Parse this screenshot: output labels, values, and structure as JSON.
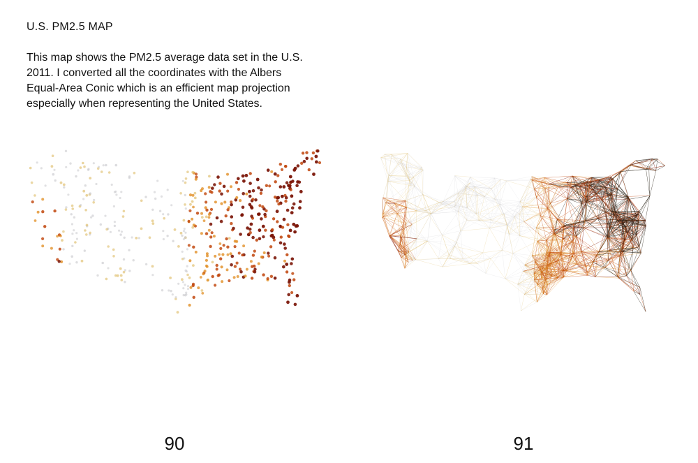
{
  "left_page": {
    "title": "U.S. PM2.5 MAP",
    "body_lines": [
      "This map shows the PM2.5 average data set in the U.S.",
      "2011. I converted all the coordinates with the Albers",
      "Equal-Area Conic which is an efficient map projection",
      "especially when representing the United States."
    ],
    "page_number": "90"
  },
  "right_page": {
    "page_number": "91"
  },
  "colors": {
    "low": "#c8c8cc",
    "mid_low": "#e0c070",
    "mid": "#e08a1c",
    "high": "#c0440a",
    "very_high": "#7a1406",
    "mesh_dark": "#2a2418"
  }
}
